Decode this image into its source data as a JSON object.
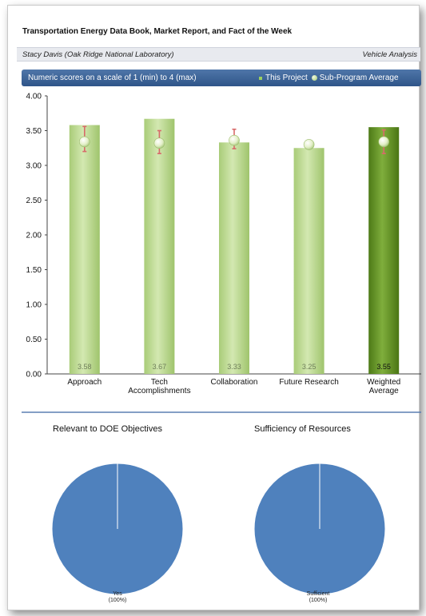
{
  "header": {
    "title": "Transportation Energy Data Book, Market Report, and Fact of the Week",
    "author": "Stacy Davis (Oak Ridge National Laboratory)",
    "division": "Vehicle Analysis"
  },
  "legend": {
    "scale_note": "Numeric scores on a scale of 1 (min) to 4 (max)",
    "project_label": "This Project",
    "average_label": "Sub-Program Average"
  },
  "colors": {
    "bar": "#b9d88b",
    "weighted_bar": "#5c8a1f",
    "average_marker": "#e3efc8",
    "error_bar": "#d86a6a",
    "pie": "#4f81bd",
    "legend_bar": "#3a6296"
  },
  "chart_data": [
    {
      "type": "bar",
      "categories": [
        "Approach",
        "Tech Accomplishments",
        "Collaboration",
        "Future Research",
        "Weighted Average"
      ],
      "category_lines": [
        [
          "Approach"
        ],
        [
          "Tech",
          "Accomplishments"
        ],
        [
          "Collaboration"
        ],
        [
          "Future Research"
        ],
        [
          "Weighted",
          "Average"
        ]
      ],
      "series": [
        {
          "name": "This Project",
          "values": [
            3.58,
            3.67,
            3.33,
            3.25,
            3.55
          ]
        },
        {
          "name": "Sub-Program Average",
          "values": [
            3.34,
            3.32,
            3.36,
            3.3,
            3.34
          ]
        }
      ],
      "value_labels": [
        "3.58",
        "3.67",
        "3.33",
        "3.25",
        "3.55"
      ],
      "error_ranges": [
        [
          3.2,
          3.56
        ],
        [
          3.17,
          3.5
        ],
        [
          3.24,
          3.52
        ],
        [
          3.26,
          3.34
        ],
        [
          3.17,
          3.51
        ]
      ],
      "highlight_index": 4,
      "ylim": [
        0,
        4
      ],
      "yticks": [
        "0.00",
        "0.50",
        "1.00",
        "1.50",
        "2.00",
        "2.50",
        "3.00",
        "3.50",
        "4.00"
      ],
      "grid": false,
      "legend": "top-right"
    },
    {
      "type": "pie",
      "title": "Relevant to DOE Objectives",
      "labels": [
        "Yes"
      ],
      "values": [
        100
      ],
      "caption_lines": [
        "Yes",
        "(100%)"
      ]
    },
    {
      "type": "pie",
      "title": "Sufficiency of Resources",
      "labels": [
        "Sufficient"
      ],
      "values": [
        100
      ],
      "caption_lines": [
        "Sufficient",
        "(100%)"
      ]
    }
  ]
}
